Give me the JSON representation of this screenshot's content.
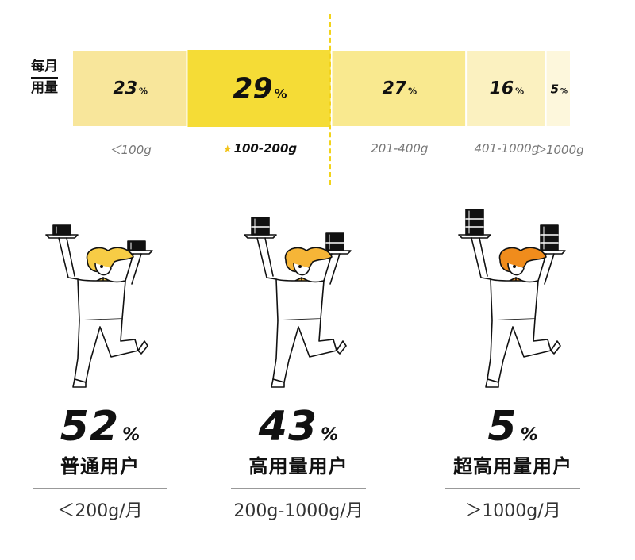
{
  "chart_data": {
    "type": "bar",
    "orientation": "horizontal-stacked",
    "axis_label": [
      "每月",
      "用量"
    ],
    "categories": [
      "＜100g",
      "100-200g",
      "201-400g",
      "401-1000g",
      "＞1000g"
    ],
    "values": [
      23,
      29,
      27,
      16,
      5
    ],
    "percent_symbol": "%",
    "highlight_index": 1,
    "colors": [
      "#f8e69b",
      "#f5dc36",
      "#f9e98f",
      "#fbf1c0",
      "#fdf7dc"
    ],
    "divider_color": "#f2d31a",
    "star_color": "#f2c41a"
  },
  "groups": [
    {
      "share": "52",
      "percent_symbol": "%",
      "name": "普通用户",
      "range": "＜200g/月",
      "hair": "#f7cc45",
      "box_sizes": [
        1,
        1
      ]
    },
    {
      "share": "43",
      "percent_symbol": "%",
      "name": "高用量用户",
      "range": "200g-1000g/月",
      "hair": "#f6b537",
      "box_sizes": [
        2,
        2
      ]
    },
    {
      "share": "5",
      "percent_symbol": "%",
      "name": "超高用量用户",
      "range": "＞1000g/月",
      "hair": "#f08c1c",
      "box_sizes": [
        3,
        3
      ]
    }
  ]
}
